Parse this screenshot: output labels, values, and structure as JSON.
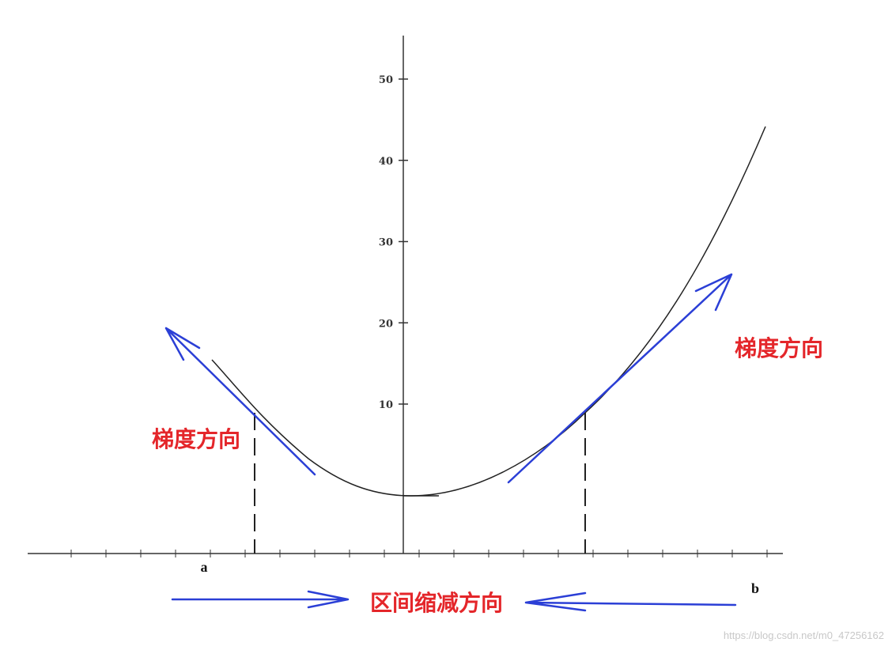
{
  "axis": {
    "yticks": [
      10,
      20,
      30,
      40,
      50
    ]
  },
  "labels": {
    "a": "a",
    "b": "b",
    "left_gradient": "梯度方向",
    "right_gradient": "梯度方向",
    "shrink": "区间缩减方向"
  },
  "watermark": "https://blog.csdn.net/m0_47256162"
}
